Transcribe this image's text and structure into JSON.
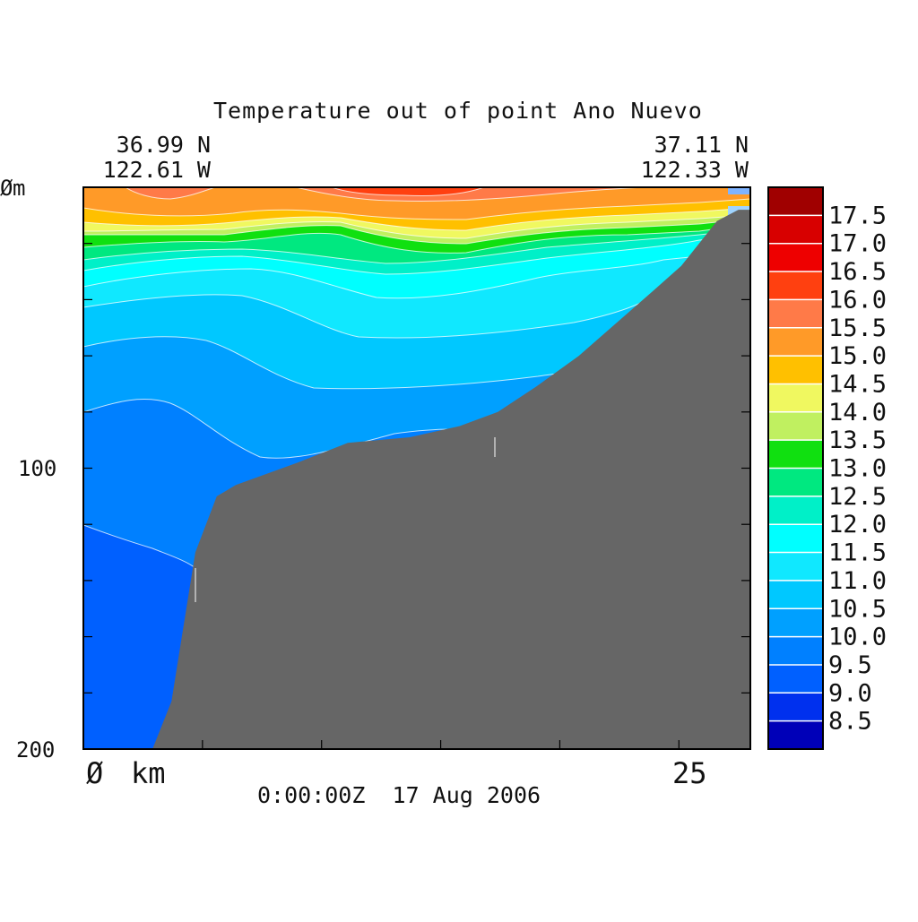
{
  "chart_data": {
    "type": "heatmap",
    "title": "Temperature out of point Ano Nuevo",
    "left_end": {
      "lat": "36.99 N",
      "lon": "122.61 W"
    },
    "right_end": {
      "lat": "37.11 N",
      "lon": "122.33 W"
    },
    "y_axis": {
      "unit": "m",
      "ticks": [
        "Ø",
        "100",
        "200"
      ],
      "range": [
        0,
        200
      ]
    },
    "x_axis": {
      "unit": "km",
      "ticks": [
        "Ø",
        "25"
      ],
      "range": [
        0,
        28
      ]
    },
    "timestamp": "0:00:00Z  17 Aug 2006",
    "legend_labels": [
      "17.5",
      "17.0",
      "16.5",
      "16.0",
      "15.5",
      "15.0",
      "14.5",
      "14.0",
      "13.5",
      "13.0",
      "12.5",
      "12.0",
      "11.5",
      "11.0",
      "10.5",
      "10.0",
      "9.5",
      "9.0",
      "8.5"
    ],
    "legend_colors": [
      "#a00000",
      "#d80000",
      "#ee0000",
      "#ff4010",
      "#ff7a48",
      "#ff9a28",
      "#ffc000",
      "#f0f860",
      "#c0f060",
      "#10e010",
      "#00e880",
      "#00f0c8",
      "#00ffff",
      "#10e8ff",
      "#00c8ff",
      "#00a0ff",
      "#0080ff",
      "#0060ff",
      "#0030ee",
      "#0000b8"
    ],
    "bottom_profile_km_m": [
      [
        2.9,
        200
      ],
      [
        3.7,
        183
      ],
      [
        4.7,
        130
      ],
      [
        5.6,
        110
      ],
      [
        6.4,
        106
      ],
      [
        9.0,
        98
      ],
      [
        11.1,
        91
      ],
      [
        13.7,
        89
      ],
      [
        15.8,
        85
      ],
      [
        17.4,
        80
      ],
      [
        19.0,
        71
      ],
      [
        20.8,
        60
      ],
      [
        23.9,
        37
      ],
      [
        25.1,
        28
      ],
      [
        26.6,
        12
      ],
      [
        27.5,
        8
      ],
      [
        28.0,
        8
      ]
    ],
    "gridlines": false
  }
}
